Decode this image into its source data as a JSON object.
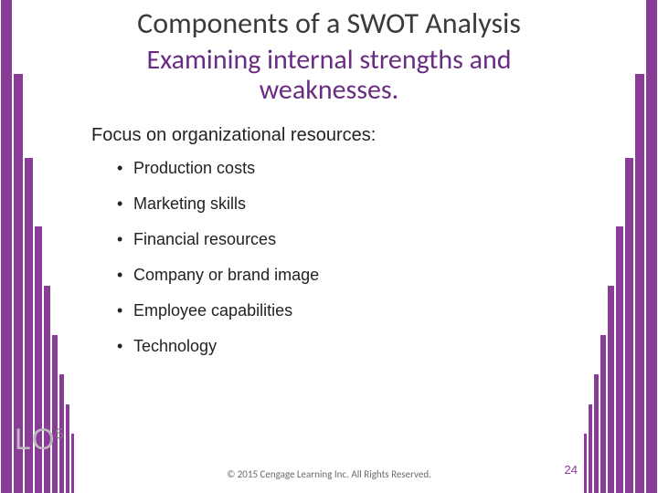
{
  "colors": {
    "accent": "#8a3d96",
    "title": "#3b3b3b",
    "subtitle": "#6a2c82",
    "body": "#222222",
    "footer": "#6b6b6b",
    "lo": "#bfb9bf",
    "background": "#ffffff"
  },
  "title": "Components of a SWOT Analysis",
  "subtitle": "Examining internal strengths and weaknesses.",
  "lead": "Focus on organizational resources:",
  "bullets": [
    "Production costs",
    "Marketing skills",
    "Financial resources",
    "Company or brand image",
    "Employee capabilities",
    "Technology"
  ],
  "footer": "© 2015 Cengage Learning Inc. All Rights Reserved.",
  "page_number": "24",
  "lo_label": "LO",
  "lo_number": "5"
}
